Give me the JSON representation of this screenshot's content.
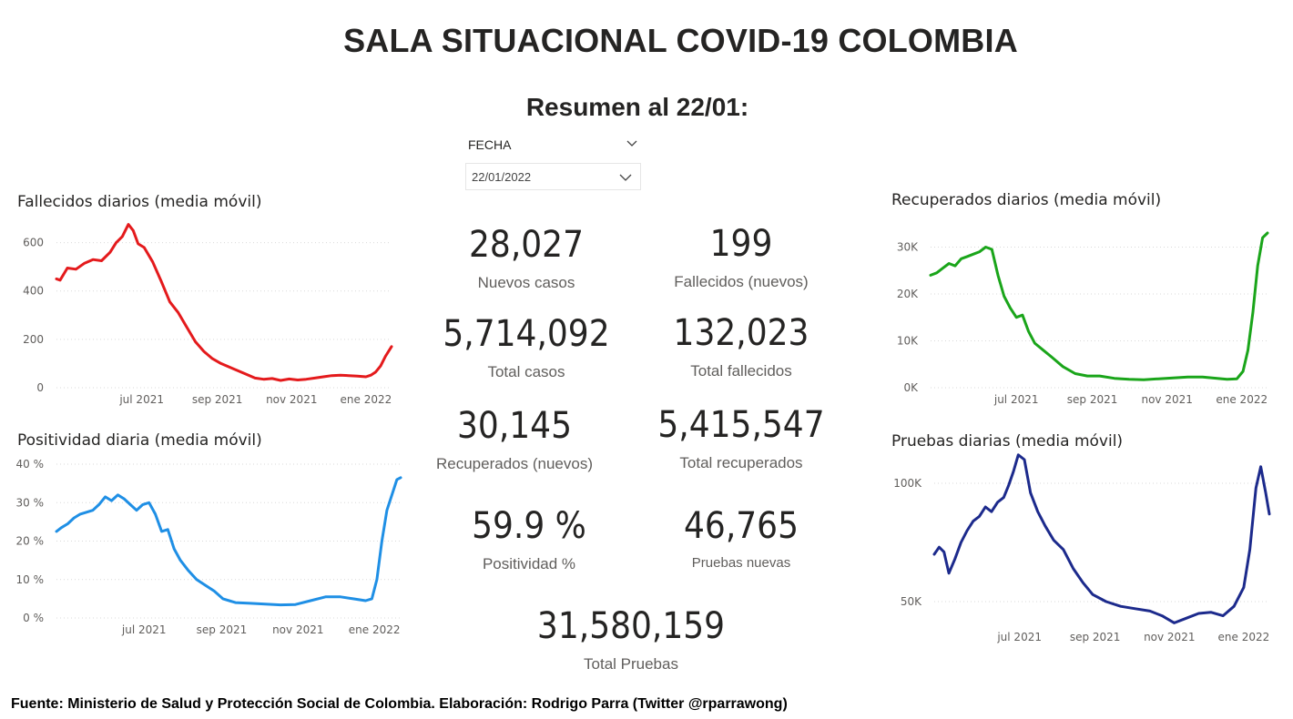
{
  "header": {
    "title": "SALA SITUACIONAL COVID-19 COLOMBIA",
    "subtitle": "Resumen al 22/01:"
  },
  "slicer": {
    "label": "FECHA",
    "value": "22/01/2022"
  },
  "kpis": [
    {
      "value": "28,027",
      "label": "Nuevos casos"
    },
    {
      "value": "199",
      "label": "Fallecidos (nuevos)"
    },
    {
      "value": "5,714,092",
      "label": "Total casos"
    },
    {
      "value": "132,023",
      "label": "Total fallecidos"
    },
    {
      "value": "30,145",
      "label": "Recuperados (nuevos)"
    },
    {
      "value": "5,415,547",
      "label": "Total recuperados"
    },
    {
      "value": "59.9 %",
      "label": "Positividad %"
    },
    {
      "value": "46,765",
      "label": "Pruebas nuevas"
    },
    {
      "value": "31,580,159",
      "label": "Total Pruebas"
    }
  ],
  "footer": "Fuente: Ministerio de Salud y Protección Social de Colombia. Elaboración: Rodrigo Parra (Twitter @rparrawong)",
  "chart_data": [
    {
      "type": "line",
      "title": "Fallecidos diarios (media móvil)",
      "color": "#e41a1c",
      "xlim": [
        "2021-04-22",
        "2022-01-22"
      ],
      "ylim": [
        0,
        700
      ],
      "yticks": [
        0,
        200,
        400,
        600
      ],
      "ytick_labels": [
        "0",
        "200",
        "400",
        "600"
      ],
      "xticks": [
        "2021-07-01",
        "2021-09-01",
        "2021-11-01",
        "2022-01-01"
      ],
      "xtick_labels": [
        "jul 2021",
        "sep 2021",
        "nov 2021",
        "ene 2022"
      ],
      "grid": true,
      "x": [
        "2021-04-22",
        "2021-04-25",
        "2021-05-01",
        "2021-05-08",
        "2021-05-15",
        "2021-05-22",
        "2021-05-29",
        "2021-06-05",
        "2021-06-10",
        "2021-06-15",
        "2021-06-20",
        "2021-06-24",
        "2021-06-28",
        "2021-07-03",
        "2021-07-10",
        "2021-07-17",
        "2021-07-24",
        "2021-07-31",
        "2021-08-07",
        "2021-08-14",
        "2021-08-21",
        "2021-08-28",
        "2021-09-04",
        "2021-09-11",
        "2021-09-18",
        "2021-09-25",
        "2021-10-02",
        "2021-10-09",
        "2021-10-16",
        "2021-10-23",
        "2021-10-30",
        "2021-11-06",
        "2021-11-13",
        "2021-11-20",
        "2021-11-27",
        "2021-12-04",
        "2021-12-11",
        "2021-12-18",
        "2021-12-25",
        "2022-01-01",
        "2022-01-05",
        "2022-01-09",
        "2022-01-13",
        "2022-01-17",
        "2022-01-22"
      ],
      "y": [
        450,
        445,
        495,
        490,
        515,
        530,
        525,
        560,
        600,
        625,
        675,
        650,
        595,
        580,
        520,
        440,
        355,
        310,
        250,
        190,
        150,
        120,
        100,
        85,
        70,
        55,
        40,
        35,
        38,
        30,
        36,
        32,
        35,
        40,
        45,
        50,
        52,
        50,
        48,
        45,
        52,
        65,
        90,
        130,
        170
      ]
    },
    {
      "type": "line",
      "title": "Positividad diaria (media móvil)",
      "color": "#1f8fe5",
      "xlim": [
        "2021-04-22",
        "2022-01-22"
      ],
      "ylim": [
        0,
        40
      ],
      "yticks": [
        0,
        10,
        20,
        30,
        40
      ],
      "ytick_labels": [
        "0 %",
        "10 %",
        "20 %",
        "30 %",
        "40 %"
      ],
      "xticks": [
        "2021-07-01",
        "2021-09-01",
        "2021-11-01",
        "2022-01-01"
      ],
      "xtick_labels": [
        "jul 2021",
        "sep 2021",
        "nov 2021",
        "ene 2022"
      ],
      "grid": true,
      "x": [
        "2021-04-22",
        "2021-04-26",
        "2021-05-01",
        "2021-05-06",
        "2021-05-11",
        "2021-05-16",
        "2021-05-21",
        "2021-05-26",
        "2021-05-31",
        "2021-06-05",
        "2021-06-10",
        "2021-06-15",
        "2021-06-20",
        "2021-06-25",
        "2021-06-30",
        "2021-07-05",
        "2021-07-10",
        "2021-07-15",
        "2021-07-20",
        "2021-07-25",
        "2021-07-30",
        "2021-08-05",
        "2021-08-12",
        "2021-08-19",
        "2021-08-26",
        "2021-09-02",
        "2021-09-12",
        "2021-09-24",
        "2021-10-06",
        "2021-10-18",
        "2021-10-30",
        "2021-11-11",
        "2021-11-23",
        "2021-12-05",
        "2021-12-15",
        "2021-12-25",
        "2021-12-30",
        "2022-01-03",
        "2022-01-07",
        "2022-01-11",
        "2022-01-15",
        "2022-01-19",
        "2022-01-22"
      ],
      "y": [
        22.5,
        23.5,
        24.5,
        26,
        27,
        27.5,
        28,
        29.5,
        31.5,
        30.5,
        32,
        31,
        29.5,
        28,
        29.5,
        30,
        27,
        22.5,
        23,
        18,
        15,
        12.5,
        10,
        8.5,
        7,
        5,
        4,
        3.8,
        3.6,
        3.4,
        3.5,
        4.5,
        5.5,
        5.5,
        5,
        4.5,
        5,
        10,
        20,
        28,
        32,
        36,
        36.5
      ]
    },
    {
      "type": "line",
      "title": "Recuperados diarios (media móvil)",
      "color": "#1aa51a",
      "xlim": [
        "2021-04-22",
        "2022-01-22"
      ],
      "ylim": [
        0,
        33000
      ],
      "yticks": [
        0,
        10000,
        20000,
        30000
      ],
      "ytick_labels": [
        "0K",
        "10K",
        "20K",
        "30K"
      ],
      "xticks": [
        "2021-07-01",
        "2021-09-01",
        "2021-11-01",
        "2022-01-01"
      ],
      "xtick_labels": [
        "jul 2021",
        "sep 2021",
        "nov 2021",
        "ene 2022"
      ],
      "grid": true,
      "x": [
        "2021-04-22",
        "2021-04-27",
        "2021-05-02",
        "2021-05-07",
        "2021-05-12",
        "2021-05-17",
        "2021-05-22",
        "2021-05-27",
        "2021-06-01",
        "2021-06-06",
        "2021-06-11",
        "2021-06-16",
        "2021-06-21",
        "2021-06-26",
        "2021-07-01",
        "2021-07-06",
        "2021-07-11",
        "2021-07-16",
        "2021-07-23",
        "2021-07-30",
        "2021-08-08",
        "2021-08-18",
        "2021-08-28",
        "2021-09-07",
        "2021-09-19",
        "2021-10-01",
        "2021-10-13",
        "2021-10-25",
        "2021-11-06",
        "2021-11-18",
        "2021-11-30",
        "2021-12-12",
        "2021-12-20",
        "2021-12-28",
        "2022-01-02",
        "2022-01-06",
        "2022-01-10",
        "2022-01-14",
        "2022-01-18",
        "2022-01-22"
      ],
      "y": [
        24000,
        24500,
        25500,
        26500,
        26000,
        27500,
        28000,
        28500,
        29000,
        30000,
        29500,
        24000,
        19500,
        17000,
        15000,
        15500,
        12000,
        9500,
        8000,
        6500,
        4500,
        3000,
        2500,
        2500,
        2000,
        1800,
        1700,
        1900,
        2100,
        2300,
        2300,
        2000,
        1800,
        1900,
        3500,
        8000,
        16000,
        26000,
        32000,
        33000
      ]
    },
    {
      "type": "line",
      "title": "Pruebas diarias (media móvil)",
      "color": "#1c2a8c",
      "xlim": [
        "2021-04-22",
        "2022-01-22"
      ],
      "ylim": [
        40000,
        110000
      ],
      "yticks": [
        50000,
        100000
      ],
      "ytick_labels": [
        "50K",
        "100K"
      ],
      "xticks": [
        "2021-07-01",
        "2021-09-01",
        "2021-11-01",
        "2022-01-01"
      ],
      "xtick_labels": [
        "jul 2021",
        "sep 2021",
        "nov 2021",
        "ene 2022"
      ],
      "grid": true,
      "x": [
        "2021-04-22",
        "2021-04-26",
        "2021-04-30",
        "2021-05-04",
        "2021-05-09",
        "2021-05-14",
        "2021-05-19",
        "2021-05-24",
        "2021-05-29",
        "2021-06-03",
        "2021-06-08",
        "2021-06-13",
        "2021-06-18",
        "2021-06-22",
        "2021-06-26",
        "2021-06-30",
        "2021-07-05",
        "2021-07-10",
        "2021-07-16",
        "2021-07-22",
        "2021-07-29",
        "2021-08-06",
        "2021-08-14",
        "2021-08-22",
        "2021-08-30",
        "2021-09-10",
        "2021-09-22",
        "2021-10-04",
        "2021-10-16",
        "2021-10-26",
        "2021-11-05",
        "2021-11-15",
        "2021-11-25",
        "2021-12-05",
        "2021-12-15",
        "2021-12-24",
        "2022-01-01",
        "2022-01-06",
        "2022-01-11",
        "2022-01-15",
        "2022-01-19",
        "2022-01-22"
      ],
      "y": [
        70000,
        73000,
        71000,
        62000,
        68000,
        75000,
        80000,
        84000,
        86000,
        90000,
        88000,
        92000,
        94000,
        99000,
        105000,
        112000,
        110000,
        96000,
        88000,
        82000,
        76000,
        72000,
        64000,
        58000,
        53000,
        50000,
        48000,
        47000,
        46000,
        44000,
        41000,
        43000,
        45000,
        45500,
        44000,
        48000,
        56000,
        72000,
        98000,
        107000,
        96000,
        87000
      ]
    }
  ]
}
